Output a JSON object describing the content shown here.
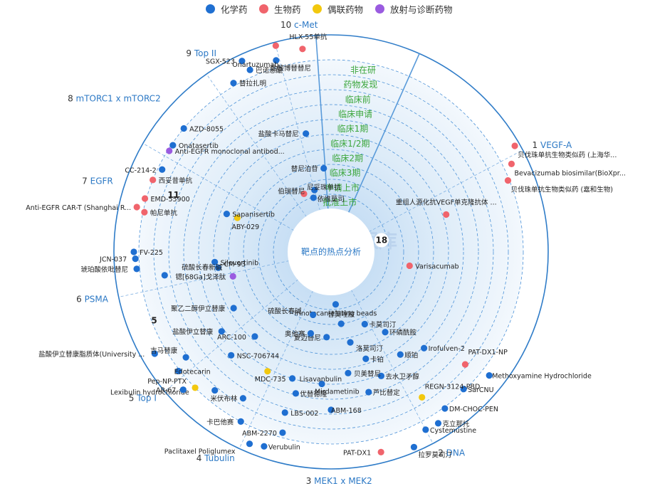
{
  "colors": {
    "chemical": "#1F6FD1",
    "biologic": "#F0646C",
    "conjugate": "#F2C80E",
    "radio": "#9A5BE0",
    "stage_text": "#3BA63B",
    "target_label": "#2B78C5"
  },
  "legend": [
    {
      "label": "化学药",
      "color": "#1F6FD1"
    },
    {
      "label": "生物药",
      "color": "#F0646C"
    },
    {
      "label": "偶联药物",
      "color": "#F2C80E"
    },
    {
      "label": "放射与诊断药物",
      "color": "#9A5BE0"
    }
  ],
  "center_label": "靶点的热点分析",
  "watermark": "医药情报库",
  "chart_data": {
    "type": "radial-pipeline",
    "stages": [
      "非在研",
      "药物发现",
      "临床前",
      "临床申请",
      "临床1期",
      "临床1/2期",
      "临床2期",
      "临床3期",
      "申请上市",
      "批准上市"
    ],
    "targets": [
      {
        "index": "1",
        "name": "VEGF-A"
      },
      {
        "index": "2",
        "name": "DNA"
      },
      {
        "index": "3",
        "name": "MEK1 x MEK2"
      },
      {
        "index": "4",
        "name": "Tubulin"
      },
      {
        "index": "5",
        "name": "Top I"
      },
      {
        "index": "6",
        "name": "PSMA"
      },
      {
        "index": "7",
        "name": "EGFR"
      },
      {
        "index": "8",
        "name": "mTORC1 x mTORC2"
      },
      {
        "index": "9",
        "name": "Top II"
      },
      {
        "index": "10",
        "name": "c-Met"
      }
    ],
    "sector_counts": [
      "18",
      "5",
      "11"
    ],
    "drugs": [
      {
        "name": "贝伐珠单抗生物类似药 (上海华...",
        "type": "biologic",
        "target": "VEGF-A"
      },
      {
        "name": "Bevacizumab biosimilar(BioXpr...",
        "type": "biologic",
        "target": "VEGF-A"
      },
      {
        "name": "贝伐珠单抗生物类似药 (嘉和生物)",
        "type": "biologic",
        "target": "VEGF-A"
      },
      {
        "name": "重组人源化抗VEGF单克隆抗体 ...",
        "type": "biologic",
        "target": "VEGF-A"
      },
      {
        "name": "Varisacumab",
        "type": "biologic",
        "target": "VEGF-A"
      },
      {
        "name": "依维莫司",
        "type": "chemical",
        "target": "mTORC1 x mTORC2"
      },
      {
        "name": "尼妥珠单抗",
        "type": "biologic",
        "target": "EGFR"
      },
      {
        "name": "Irinotecan-eluting beads",
        "type": "chemical",
        "target": "Top I"
      },
      {
        "name": "替莫唑胺",
        "type": "chemical",
        "target": "DNA"
      },
      {
        "name": "卡莫司汀",
        "type": "chemical",
        "target": "DNA"
      },
      {
        "name": "洛莫司汀",
        "type": "chemical",
        "target": "DNA"
      },
      {
        "name": "环磷酰胺",
        "type": "chemical",
        "target": "DNA"
      },
      {
        "name": "复迈替尼",
        "type": "chemical",
        "target": "MEK1 x MEK2"
      },
      {
        "name": "卡铂",
        "type": "chemical",
        "target": "DNA"
      },
      {
        "name": "顺铂",
        "type": "chemical",
        "target": "DNA"
      },
      {
        "name": "Irofulven-2",
        "type": "chemical",
        "target": "DNA"
      },
      {
        "name": "去水卫矛醇",
        "type": "chemical",
        "target": "DNA"
      },
      {
        "name": "奥他赛",
        "type": "chemical",
        "target": "Tubulin"
      },
      {
        "name": "贝美替尼",
        "type": "chemical",
        "target": "MEK1 x MEK2"
      },
      {
        "name": "芦比替定",
        "type": "chemical",
        "target": "DNA"
      },
      {
        "name": "Mirdametinib",
        "type": "chemical",
        "target": "MEK1 x MEK2"
      },
      {
        "name": "ABM-168",
        "type": "chemical",
        "target": "MEK1 x MEK2"
      },
      {
        "name": "PAT-DX1-NP",
        "type": "biologic",
        "target": "DNA"
      },
      {
        "name": "Methoxyamine Hydrochloride",
        "type": "chemical",
        "target": "DNA"
      },
      {
        "name": "SarCNU",
        "type": "chemical",
        "target": "DNA"
      },
      {
        "name": "REGN-3124-PBD",
        "type": "conjugate",
        "target": "DNA"
      },
      {
        "name": "DM-CHOC-PEN",
        "type": "chemical",
        "target": "DNA"
      },
      {
        "name": "克立那托",
        "type": "chemical",
        "target": "DNA"
      },
      {
        "name": "Cystemustine",
        "type": "chemical",
        "target": "DNA"
      },
      {
        "name": "PAT-DX1",
        "type": "biologic",
        "target": "DNA"
      },
      {
        "name": "拉罗莫司汀",
        "type": "chemical",
        "target": "DNA"
      },
      {
        "name": "Verubulin",
        "type": "chemical",
        "target": "Tubulin"
      },
      {
        "name": "ABM-2270",
        "type": "chemical",
        "target": "MEK1 x MEK2"
      },
      {
        "name": "LBS-002",
        "type": "chemical",
        "target": "Tubulin"
      },
      {
        "name": "优替德隆",
        "type": "chemical",
        "target": "Tubulin"
      },
      {
        "name": "Paclitaxel Poliglumex",
        "type": "chemical",
        "target": "Tubulin"
      },
      {
        "name": "卡巴他赛",
        "type": "chemical",
        "target": "Tubulin"
      },
      {
        "name": "米伏布林",
        "type": "chemical",
        "target": "Tubulin"
      },
      {
        "name": "Lexibulin hydrochloride",
        "type": "chemical",
        "target": "Tubulin"
      },
      {
        "name": "Pep-NP-PTX",
        "type": "conjugate",
        "target": "Tubulin"
      },
      {
        "name": "AR-67",
        "type": "chemical",
        "target": "Top I"
      },
      {
        "name": "MDC-735",
        "type": "conjugate",
        "target": "Top I"
      },
      {
        "name": "Lisavanbulin",
        "type": "chemical",
        "target": "Tubulin"
      },
      {
        "name": "Edotecarin",
        "type": "chemical",
        "target": "Top I"
      },
      {
        "name": "NSC-706744",
        "type": "chemical",
        "target": "Top I"
      },
      {
        "name": "盐酸伊立替康脂质体(University ...",
        "type": "chemical",
        "target": "Top I"
      },
      {
        "name": "吉马替康",
        "type": "chemical",
        "target": "Top I"
      },
      {
        "name": "ARC-100",
        "type": "chemical",
        "target": "Top I"
      },
      {
        "name": "盐酸伊立替康",
        "type": "chemical",
        "target": "Top I"
      },
      {
        "name": "聚乙二醇伊立替康",
        "type": "chemical",
        "target": "Top I"
      },
      {
        "name": "硫酸长春碱",
        "type": "chemical",
        "target": "Tubulin"
      },
      {
        "name": "锶[68Ga]戈泽肽",
        "type": "radio",
        "target": "PSMA"
      },
      {
        "name": "琥珀酸依吡替尼",
        "type": "chemical",
        "target": "EGFR"
      },
      {
        "name": "JCN-037",
        "type": "chemical",
        "target": "EGFR"
      },
      {
        "name": "FV-225",
        "type": "chemical",
        "target": "EGFR"
      },
      {
        "name": "Anti-EGFR CAR-T (Shanghai R...",
        "type": "biologic",
        "target": "EGFR"
      },
      {
        "name": "Silevertinib",
        "type": "chemical",
        "target": "EGFR"
      },
      {
        "name": "CM-93",
        "type": "chemical",
        "target": "EGFR"
      },
      {
        "name": "ABY-029",
        "type": "conjugate",
        "target": "EGFR"
      },
      {
        "name": "帕尼单抗",
        "type": "biologic",
        "target": "EGFR"
      },
      {
        "name": "EMD-55900",
        "type": "biologic",
        "target": "EGFR"
      },
      {
        "name": "西妥昔单抗",
        "type": "biologic",
        "target": "EGFR"
      },
      {
        "name": "Anti-EGFR monoclonal antibod...",
        "type": "radio",
        "target": "EGFR"
      },
      {
        "name": "硫酸长春新碱",
        "type": "chemical",
        "target": "Tubulin"
      },
      {
        "name": "替尼泊苷",
        "type": "chemical",
        "target": "Top II"
      },
      {
        "name": "伯瑞替尼",
        "type": "chemical",
        "target": "c-Met"
      },
      {
        "name": "Sapanisertib",
        "type": "chemical",
        "target": "mTORC1 x mTORC2"
      },
      {
        "name": "CC-214-2",
        "type": "chemical",
        "target": "mTORC1 x mTORC2"
      },
      {
        "name": "Onatasertib",
        "type": "chemical",
        "target": "mTORC1 x mTORC2"
      },
      {
        "name": "AZD-8055",
        "type": "chemical",
        "target": "mTORC1 x mTORC2"
      },
      {
        "name": "盐酸卡马替尼",
        "type": "chemical",
        "target": "c-Met"
      },
      {
        "name": "替拉扎明",
        "type": "chemical",
        "target": "Top II"
      },
      {
        "name": "巴诺蒽醌",
        "type": "chemical",
        "target": "Top II"
      },
      {
        "name": "盐酸博替替尼",
        "type": "chemical",
        "target": "c-Met"
      },
      {
        "name": "SGX-523",
        "type": "chemical",
        "target": "c-Met"
      },
      {
        "name": "Onartuzumab",
        "type": "biologic",
        "target": "c-Met"
      },
      {
        "name": "HLX-55单抗",
        "type": "biologic",
        "target": "c-Met"
      }
    ]
  }
}
